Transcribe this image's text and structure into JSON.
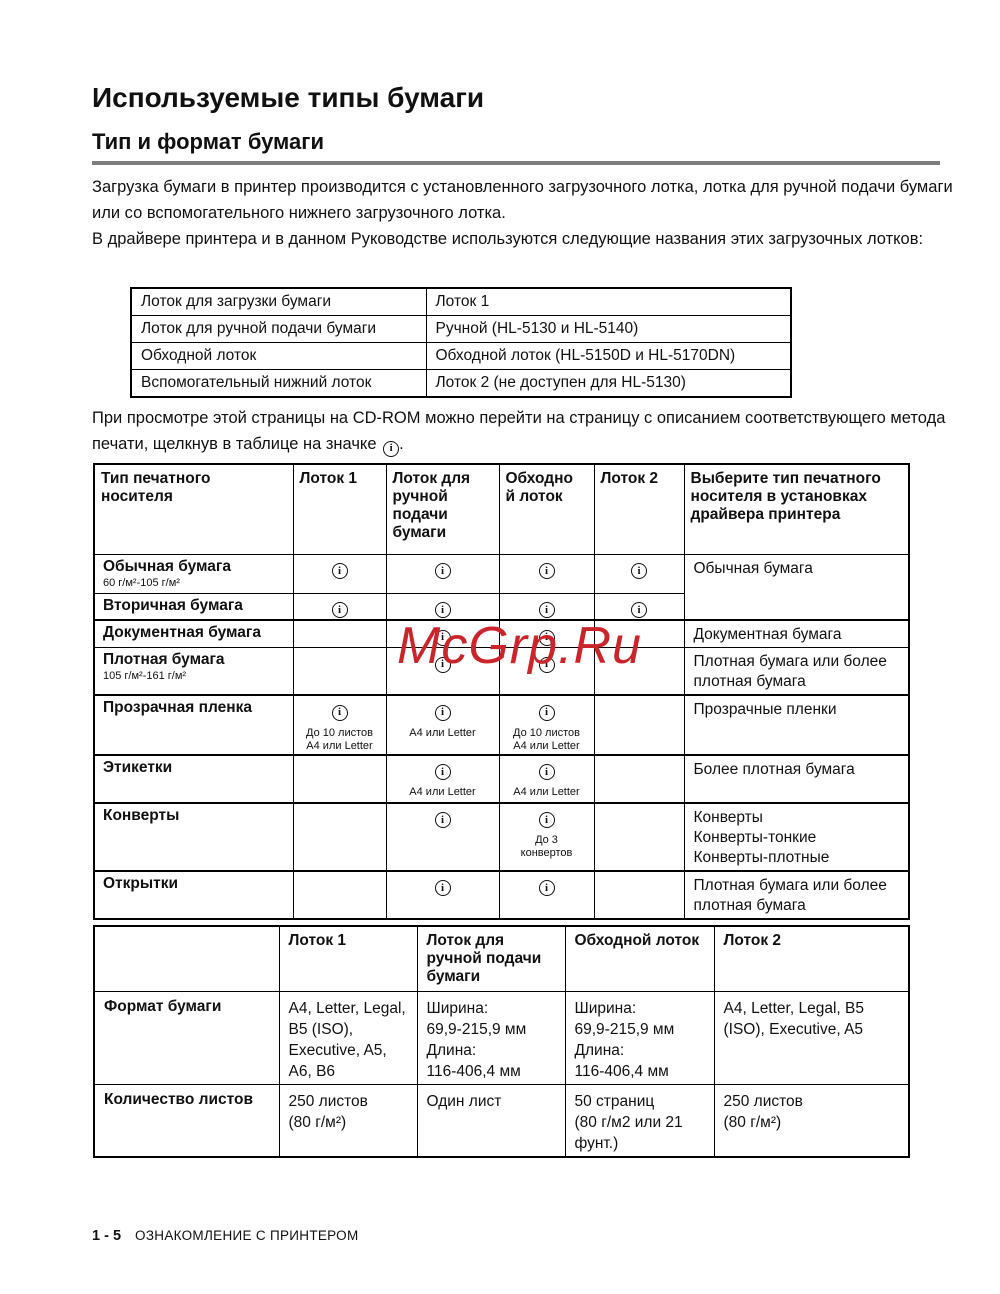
{
  "icons": {
    "info": "i"
  },
  "watermark": {
    "text": "McGrp.Ru",
    "color": "#c9252b"
  },
  "page": {
    "title": "Используемые типы бумаги",
    "subtitle": "Тип и формат бумаги",
    "paragraphs": {
      "p1": "Загрузка бумаги в принтер производится с установленного загрузочного лотка, лотка для ручной подачи бумаги или со вспомогательного нижнего загрузочного лотка.",
      "p2": "В драйвере принтера и в данном Руководстве используются следующие названия этих загрузочных лотков:",
      "p3": "При просмотре этой страницы на CD-ROM можно перейти на страницу с описанием соответствующего метода печати, щелкнув в таблице на значке",
      "p3_suffix": "."
    },
    "footer": {
      "page_number": "1 - 5",
      "section": "ОЗНАКОМЛЕНИЕ С ПРИНТЕРОМ"
    }
  },
  "tray_table": {
    "rows": [
      {
        "label": "Лоток для загрузки бумаги",
        "value": "Лоток 1"
      },
      {
        "label": "Лоток для ручной подачи бумаги",
        "value": "Ручной (HL-5130 и HL-5140)"
      },
      {
        "label": "Обходной лоток",
        "value": "Обходной лоток (HL-5150D и HL-5170DN)"
      },
      {
        "label": "Вспомогательный нижний лоток",
        "value": "Лоток 2 (не доступен для HL-5130)"
      }
    ]
  },
  "media_table": {
    "headers": [
      "Тип печатного носителя",
      "Лоток 1",
      "Лоток для ручной подачи бумаги",
      "Обходно\nй лоток",
      "Лоток 2",
      "Выберите тип печатного носителя в установках драйвера принтера"
    ],
    "rows": [
      {
        "name": "Обычная бумага",
        "sub": "60 г/м²-105 г/м²",
        "trays": [
          {
            "icon": true
          },
          {
            "icon": true
          },
          {
            "icon": true
          },
          {
            "icon": true
          }
        ],
        "driver": "Обычная бумага",
        "driver_rowspan": 2,
        "thick_top": false
      },
      {
        "name": "Вторичная бумага",
        "sub": "",
        "trays": [
          {
            "icon": true
          },
          {
            "icon": true
          },
          {
            "icon": true
          },
          {
            "icon": true
          }
        ],
        "driver": null,
        "thick_top": false
      },
      {
        "name": "Документная бумага",
        "sub": "",
        "trays": [
          null,
          {
            "icon": true
          },
          {
            "icon": true
          },
          null
        ],
        "driver": "Документная бумага",
        "thick_top": true
      },
      {
        "name": "Плотная бумага",
        "sub": "105 г/м²-161 г/м²",
        "trays": [
          null,
          {
            "icon": true
          },
          {
            "icon": true
          },
          null
        ],
        "driver": "Плотная бумага или более плотная бумага",
        "thick_top": false
      },
      {
        "name": "Прозрачная пленка",
        "sub": "",
        "trays": [
          {
            "icon": true,
            "note": "До 10 листов\nА4 или Letter"
          },
          {
            "icon": true,
            "note": "А4 или Letter"
          },
          {
            "icon": true,
            "note": "До 10 листов\nА4 или Letter"
          },
          null
        ],
        "driver": "Прозрачные пленки",
        "thick_top": true
      },
      {
        "name": "Этикетки",
        "sub": "",
        "trays": [
          null,
          {
            "icon": true,
            "note": "А4 или Letter"
          },
          {
            "icon": true,
            "note": "А4 или Letter"
          },
          null
        ],
        "driver": "Более плотная бумага",
        "thick_top": true
      },
      {
        "name": "Конверты",
        "sub": "",
        "trays": [
          null,
          {
            "icon": true
          },
          {
            "icon": true,
            "note": "До 3\nконвертов"
          },
          null
        ],
        "driver": "Конверты\nКонверты-тонкие\nКонверты-плотные",
        "thick_top": true
      },
      {
        "name": "Открытки",
        "sub": "",
        "trays": [
          null,
          {
            "icon": true
          },
          {
            "icon": true
          },
          null
        ],
        "driver": "Плотная бумага или более плотная бумага",
        "thick_top": true
      }
    ]
  },
  "spec_table": {
    "headers": [
      "",
      "Лоток 1",
      "Лоток для ручной подачи бумаги",
      "Обходной лоток",
      "Лоток 2"
    ],
    "rows": [
      {
        "label": "Формат бумаги",
        "cells": [
          "A4, Letter, Legal, B5 (ISO), Executive, A5, A6, B6",
          "Ширина:\n69,9-215,9 мм\nДлина:\n116-406,4 мм",
          "Ширина:\n69,9-215,9 мм\nДлина:\n116-406,4 мм",
          "A4, Letter, Legal, B5 (ISO), Executive, A5"
        ]
      },
      {
        "label": "Количество листов",
        "cells": [
          "250 листов\n(80 г/м²)",
          "Один лист",
          "50 страниц\n(80 г/м2 или 21 фунт.)",
          "250 листов\n(80 г/м²)"
        ]
      }
    ]
  }
}
